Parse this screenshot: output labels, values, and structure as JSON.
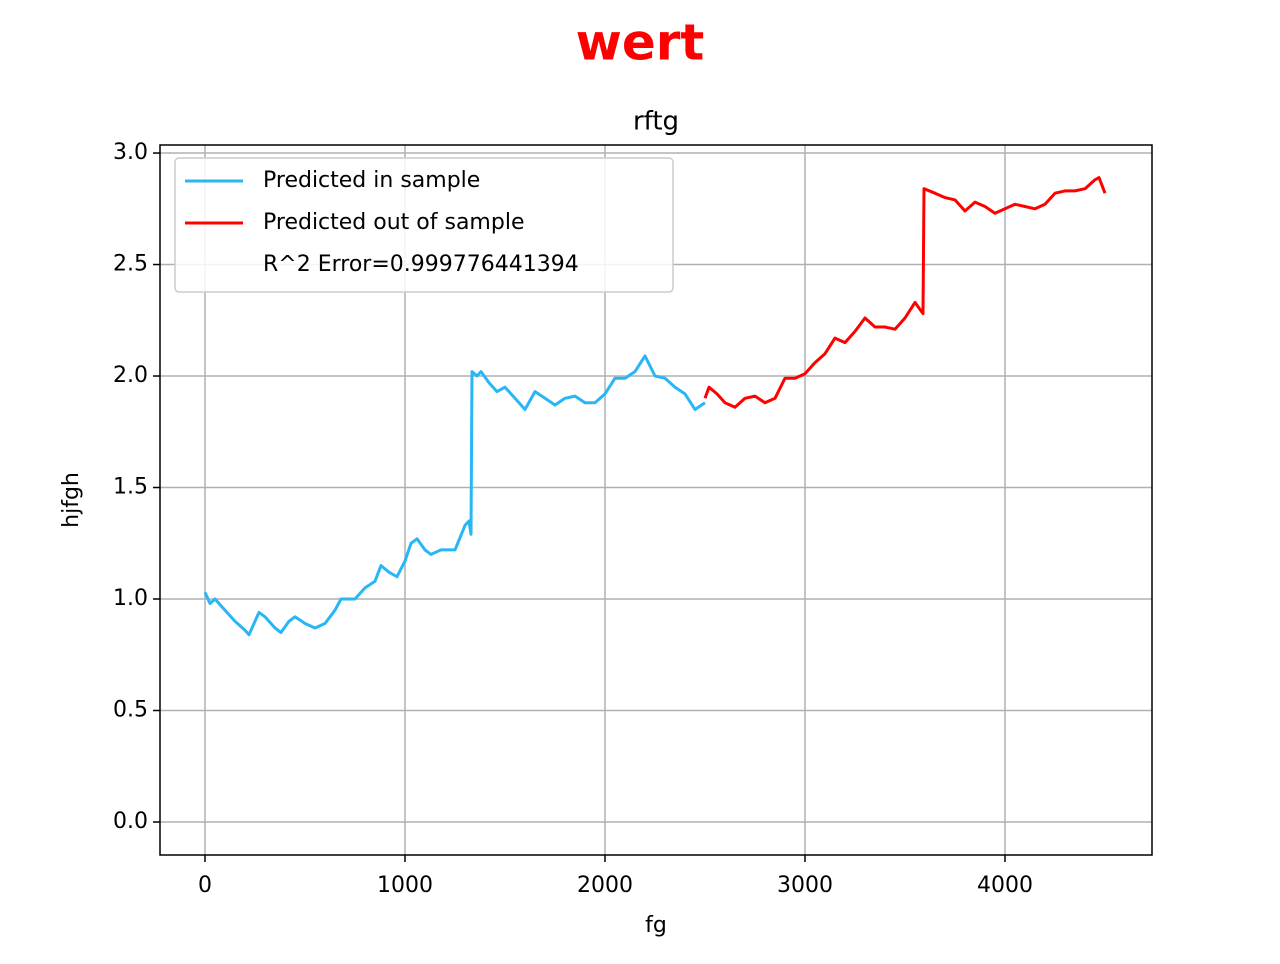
{
  "chart_data": {
    "type": "line",
    "title": "wert",
    "title_color": "#ff0000",
    "subtitle": "rftg",
    "x_label": "fg",
    "y_label": "hjfgh",
    "xlim": [
      -225,
      4735
    ],
    "ylim": [
      -0.148,
      3.036
    ],
    "xticks": [
      0,
      1000,
      2000,
      3000,
      4000
    ],
    "yticks": [
      {
        "value": 0,
        "label": "0.0"
      },
      0.5,
      {
        "value": 1,
        "label": "1.0"
      },
      1.5,
      {
        "value": 2,
        "label": "2.0"
      },
      2.5,
      {
        "value": 3,
        "label": "3.0"
      }
    ],
    "grid": true,
    "legend_position": "upper left",
    "legend_text": "R^2 Error=0.999776441394",
    "series": [
      {
        "name": "Predicted in sample",
        "color": "#29b6f6",
        "x": [
          0,
          25,
          50,
          100,
          150,
          200,
          220,
          250,
          270,
          300,
          350,
          380,
          420,
          450,
          500,
          550,
          600,
          650,
          680,
          750,
          800,
          850,
          880,
          920,
          960,
          1000,
          1030,
          1060,
          1100,
          1130,
          1180,
          1250,
          1300,
          1320,
          1330,
          1335,
          1360,
          1380,
          1420,
          1460,
          1500,
          1550,
          1600,
          1650,
          1700,
          1750,
          1800,
          1850,
          1900,
          1950,
          2000,
          2050,
          2100,
          2150,
          2200,
          2250,
          2300,
          2350,
          2400,
          2450,
          2500
        ],
        "values": [
          1.03,
          0.98,
          1.0,
          0.95,
          0.9,
          0.86,
          0.84,
          0.9,
          0.94,
          0.92,
          0.87,
          0.85,
          0.9,
          0.92,
          0.89,
          0.87,
          0.89,
          0.95,
          1.0,
          1.0,
          1.05,
          1.08,
          1.15,
          1.12,
          1.1,
          1.17,
          1.25,
          1.27,
          1.22,
          1.2,
          1.22,
          1.22,
          1.33,
          1.35,
          1.29,
          2.02,
          2.0,
          2.02,
          1.97,
          1.93,
          1.95,
          1.9,
          1.85,
          1.93,
          1.9,
          1.87,
          1.9,
          1.91,
          1.88,
          1.88,
          1.92,
          1.99,
          1.99,
          2.02,
          2.09,
          2.0,
          1.99,
          1.95,
          1.92,
          1.85,
          1.88
        ]
      },
      {
        "name": "Predicted out of sample",
        "color": "#ff0000",
        "x": [
          2500,
          2520,
          2560,
          2600,
          2650,
          2700,
          2750,
          2800,
          2850,
          2900,
          2950,
          3000,
          3050,
          3100,
          3150,
          3200,
          3250,
          3300,
          3350,
          3400,
          3450,
          3500,
          3550,
          3590,
          3595,
          3650,
          3700,
          3750,
          3800,
          3850,
          3900,
          3950,
          4000,
          4050,
          4100,
          4150,
          4200,
          4250,
          4300,
          4350,
          4400,
          4450,
          4470,
          4500
        ],
        "values": [
          1.9,
          1.95,
          1.92,
          1.88,
          1.86,
          1.9,
          1.91,
          1.88,
          1.9,
          1.99,
          1.99,
          2.01,
          2.06,
          2.1,
          2.17,
          2.15,
          2.2,
          2.26,
          2.22,
          2.22,
          2.21,
          2.26,
          2.33,
          2.28,
          2.84,
          2.82,
          2.8,
          2.79,
          2.74,
          2.78,
          2.76,
          2.73,
          2.75,
          2.77,
          2.76,
          2.75,
          2.77,
          2.82,
          2.83,
          2.83,
          2.84,
          2.88,
          2.89,
          2.82
        ]
      }
    ]
  }
}
